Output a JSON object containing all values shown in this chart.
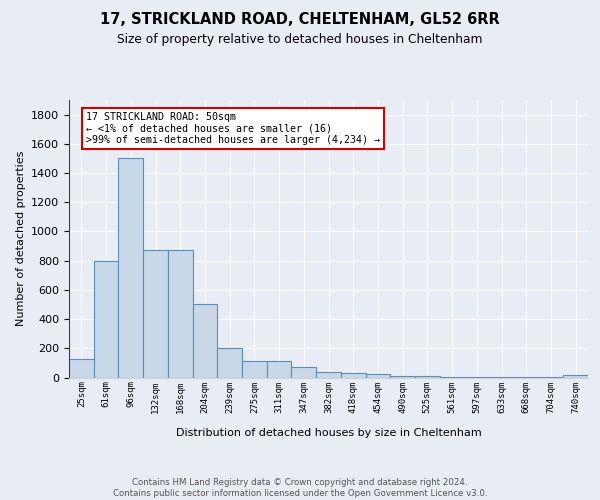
{
  "title": "17, STRICKLAND ROAD, CHELTENHAM, GL52 6RR",
  "subtitle": "Size of property relative to detached houses in Cheltenham",
  "xlabel": "Distribution of detached houses by size in Cheltenham",
  "ylabel": "Number of detached properties",
  "categories": [
    "25sqm",
    "61sqm",
    "96sqm",
    "132sqm",
    "168sqm",
    "204sqm",
    "239sqm",
    "275sqm",
    "311sqm",
    "347sqm",
    "382sqm",
    "418sqm",
    "454sqm",
    "490sqm",
    "525sqm",
    "561sqm",
    "597sqm",
    "633sqm",
    "668sqm",
    "704sqm",
    "740sqm"
  ],
  "values": [
    125,
    800,
    1500,
    875,
    875,
    500,
    205,
    110,
    110,
    70,
    40,
    30,
    25,
    10,
    10,
    5,
    5,
    5,
    5,
    5,
    20
  ],
  "bar_color": "#c8d8e8",
  "bar_edge_color": "#5b8db8",
  "highlight_line_color": "#cc0000",
  "ylim": [
    0,
    1900
  ],
  "yticks": [
    0,
    200,
    400,
    600,
    800,
    1000,
    1200,
    1400,
    1600,
    1800
  ],
  "annotation_text": "17 STRICKLAND ROAD: 50sqm\n← <1% of detached houses are smaller (16)\n>99% of semi-detached houses are larger (4,234) →",
  "annotation_box_color": "white",
  "annotation_box_edge_color": "#cc0000",
  "footer_text": "Contains HM Land Registry data © Crown copyright and database right 2024.\nContains public sector information licensed under the Open Government Licence v3.0.",
  "background_color": "#e8edf5",
  "plot_background_color": "#e8edf5",
  "grid_color": "white"
}
